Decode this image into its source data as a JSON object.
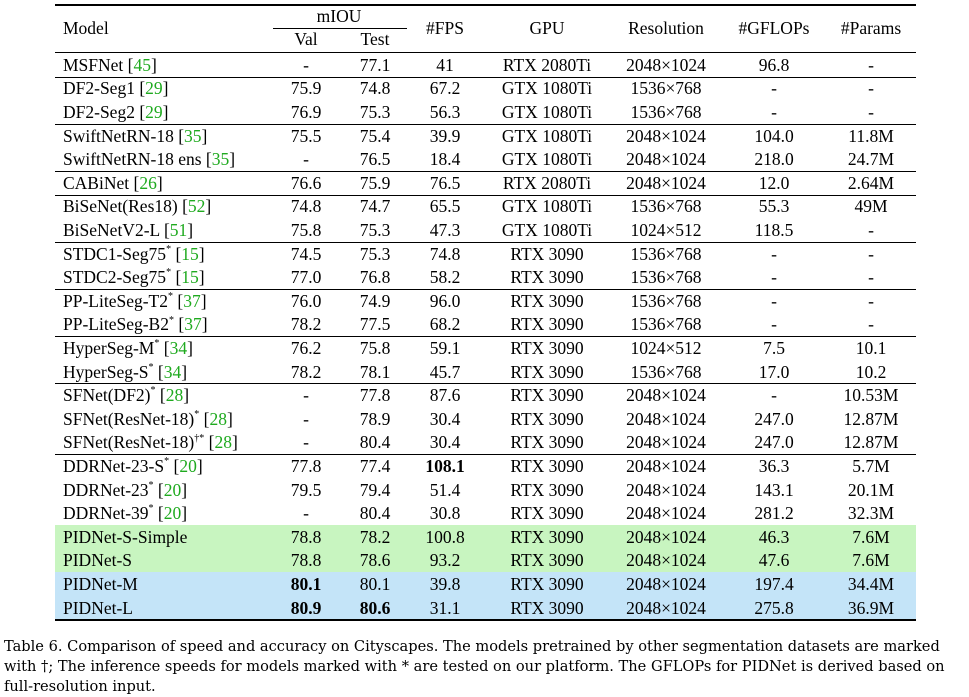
{
  "header": {
    "model": "Model",
    "miou": "mIOU",
    "val": "Val",
    "test": "Test",
    "fps": "#FPS",
    "gpu": "GPU",
    "resolution": "Resolution",
    "gflops": "#GFLOPs",
    "params": "#Params"
  },
  "colors": {
    "green_band": "#c8f5c0",
    "blue_band": "#c4e4f8",
    "citation": "#1faa1f"
  },
  "groups": [
    [
      {
        "name": "MSFNet",
        "sup": "",
        "cite": "45",
        "val": "-",
        "test": "77.1",
        "fps": "41",
        "gpu": "RTX 2080Ti",
        "res": "2048×1024",
        "gflops": "96.8",
        "params": "-"
      }
    ],
    [
      {
        "name": "DF2-Seg1",
        "sup": "",
        "cite": "29",
        "val": "75.9",
        "test": "74.8",
        "fps": "67.2",
        "gpu": "GTX 1080Ti",
        "res": "1536×768",
        "gflops": "-",
        "params": "-"
      },
      {
        "name": "DF2-Seg2",
        "sup": "",
        "cite": "29",
        "val": "76.9",
        "test": "75.3",
        "fps": "56.3",
        "gpu": "GTX 1080Ti",
        "res": "1536×768",
        "gflops": "-",
        "params": "-"
      }
    ],
    [
      {
        "name": "SwiftNetRN-18",
        "sup": "",
        "cite": "35",
        "val": "75.5",
        "test": "75.4",
        "fps": "39.9",
        "gpu": "GTX 1080Ti",
        "res": "2048×1024",
        "gflops": "104.0",
        "params": "11.8M"
      },
      {
        "name": "SwiftNetRN-18 ens",
        "sup": "",
        "cite": "35",
        "val": "-",
        "test": "76.5",
        "fps": "18.4",
        "gpu": "GTX 1080Ti",
        "res": "2048×1024",
        "gflops": "218.0",
        "params": "24.7M"
      }
    ],
    [
      {
        "name": "CABiNet",
        "sup": "",
        "cite": "26",
        "val": "76.6",
        "test": "75.9",
        "fps": "76.5",
        "gpu": "RTX 2080Ti",
        "res": "2048×1024",
        "gflops": "12.0",
        "params": "2.64M"
      }
    ],
    [
      {
        "name": "BiSeNet(Res18)",
        "sup": "",
        "cite": "52",
        "val": "74.8",
        "test": "74.7",
        "fps": "65.5",
        "gpu": "GTX 1080Ti",
        "res": "1536×768",
        "gflops": "55.3",
        "params": "49M"
      },
      {
        "name": "BiSeNetV2-L",
        "sup": "",
        "cite": "51",
        "val": "75.8",
        "test": "75.3",
        "fps": "47.3",
        "gpu": "GTX 1080Ti",
        "res": "1024×512",
        "gflops": "118.5",
        "params": "-"
      }
    ],
    [
      {
        "name": "STDC1-Seg75",
        "sup": "*",
        "cite": "15",
        "val": "74.5",
        "test": "75.3",
        "fps": "74.8",
        "gpu": "RTX 3090",
        "res": "1536×768",
        "gflops": "-",
        "params": "-"
      },
      {
        "name": "STDC2-Seg75",
        "sup": "*",
        "cite": "15",
        "val": "77.0",
        "test": "76.8",
        "fps": "58.2",
        "gpu": "RTX 3090",
        "res": "1536×768",
        "gflops": "-",
        "params": "-"
      }
    ],
    [
      {
        "name": "PP-LiteSeg-T2",
        "sup": "*",
        "cite": "37",
        "val": "76.0",
        "test": "74.9",
        "fps": "96.0",
        "gpu": "RTX 3090",
        "res": "1536×768",
        "gflops": "-",
        "params": "-"
      },
      {
        "name": "PP-LiteSeg-B2",
        "sup": "*",
        "cite": "37",
        "val": "78.2",
        "test": "77.5",
        "fps": "68.2",
        "gpu": "RTX 3090",
        "res": "1536×768",
        "gflops": "-",
        "params": "-"
      }
    ],
    [
      {
        "name": "HyperSeg-M",
        "sup": "*",
        "cite": "34",
        "val": "76.2",
        "test": "75.8",
        "fps": "59.1",
        "gpu": "RTX 3090",
        "res": "1024×512",
        "gflops": "7.5",
        "params": "10.1"
      },
      {
        "name": "HyperSeg-S",
        "sup": "*",
        "cite": "34",
        "val": "78.2",
        "test": "78.1",
        "fps": "45.7",
        "gpu": "RTX 3090",
        "res": "1536×768",
        "gflops": "17.0",
        "params": "10.2"
      }
    ],
    [
      {
        "name": "SFNet(DF2)",
        "sup": "*",
        "cite": "28",
        "val": "-",
        "test": "77.8",
        "fps": "87.6",
        "gpu": "RTX 3090",
        "res": "2048×1024",
        "gflops": "-",
        "params": "10.53M"
      },
      {
        "name": "SFNet(ResNet-18)",
        "sup": "*",
        "cite": "28",
        "val": "-",
        "test": "78.9",
        "fps": "30.4",
        "gpu": "RTX 3090",
        "res": "2048×1024",
        "gflops": "247.0",
        "params": "12.87M"
      },
      {
        "name": "SFNet(ResNet-18)",
        "sup": "†*",
        "cite": "28",
        "val": "-",
        "test": "80.4",
        "fps": "30.4",
        "gpu": "RTX 3090",
        "res": "2048×1024",
        "gflops": "247.0",
        "params": "12.87M"
      }
    ],
    [
      {
        "name": "DDRNet-23-S",
        "sup": "*",
        "cite": "20",
        "val": "77.8",
        "test": "77.4",
        "fps": "108.1",
        "gpu": "RTX 3090",
        "res": "2048×1024",
        "gflops": "36.3",
        "params": "5.7M",
        "bold": [
          "fps"
        ]
      },
      {
        "name": "DDRNet-23",
        "sup": "*",
        "cite": "20",
        "val": "79.5",
        "test": "79.4",
        "fps": "51.4",
        "gpu": "RTX 3090",
        "res": "2048×1024",
        "gflops": "143.1",
        "params": "20.1M"
      },
      {
        "name": "DDRNet-39",
        "sup": "*",
        "cite": "20",
        "val": "-",
        "test": "80.4",
        "fps": "30.8",
        "gpu": "RTX 3090",
        "res": "2048×1024",
        "gflops": "281.2",
        "params": "32.3M"
      }
    ],
    [
      {
        "name": "PIDNet-S-Simple",
        "sup": "",
        "cite": "",
        "val": "78.8",
        "test": "78.2",
        "fps": "100.8",
        "gpu": "RTX 3090",
        "res": "2048×1024",
        "gflops": "46.3",
        "params": "7.6M",
        "band": "green"
      },
      {
        "name": "PIDNet-S",
        "sup": "",
        "cite": "",
        "val": "78.8",
        "test": "78.6",
        "fps": "93.2",
        "gpu": "RTX 3090",
        "res": "2048×1024",
        "gflops": "47.6",
        "params": "7.6M",
        "band": "green"
      }
    ],
    [
      {
        "name": "PIDNet-M",
        "sup": "",
        "cite": "",
        "val": "80.1",
        "test": "80.1",
        "fps": "39.8",
        "gpu": "RTX 3090",
        "res": "2048×1024",
        "gflops": "197.4",
        "params": "34.4M",
        "band": "blue",
        "bold": [
          "val"
        ]
      },
      {
        "name": "PIDNet-L",
        "sup": "",
        "cite": "",
        "val": "80.9",
        "test": "80.6",
        "fps": "31.1",
        "gpu": "RTX 3090",
        "res": "2048×1024",
        "gflops": "275.8",
        "params": "36.9M",
        "band": "blue",
        "bold": [
          "val",
          "test"
        ]
      }
    ]
  ],
  "caption": "Table 6. Comparison of speed and accuracy on Cityscapes. The models pretrained by other segmentation datasets are marked with †; The inference speeds for models marked with * are tested on our platform. The GFLOPs for PIDNet is derived based on full-resolution input."
}
